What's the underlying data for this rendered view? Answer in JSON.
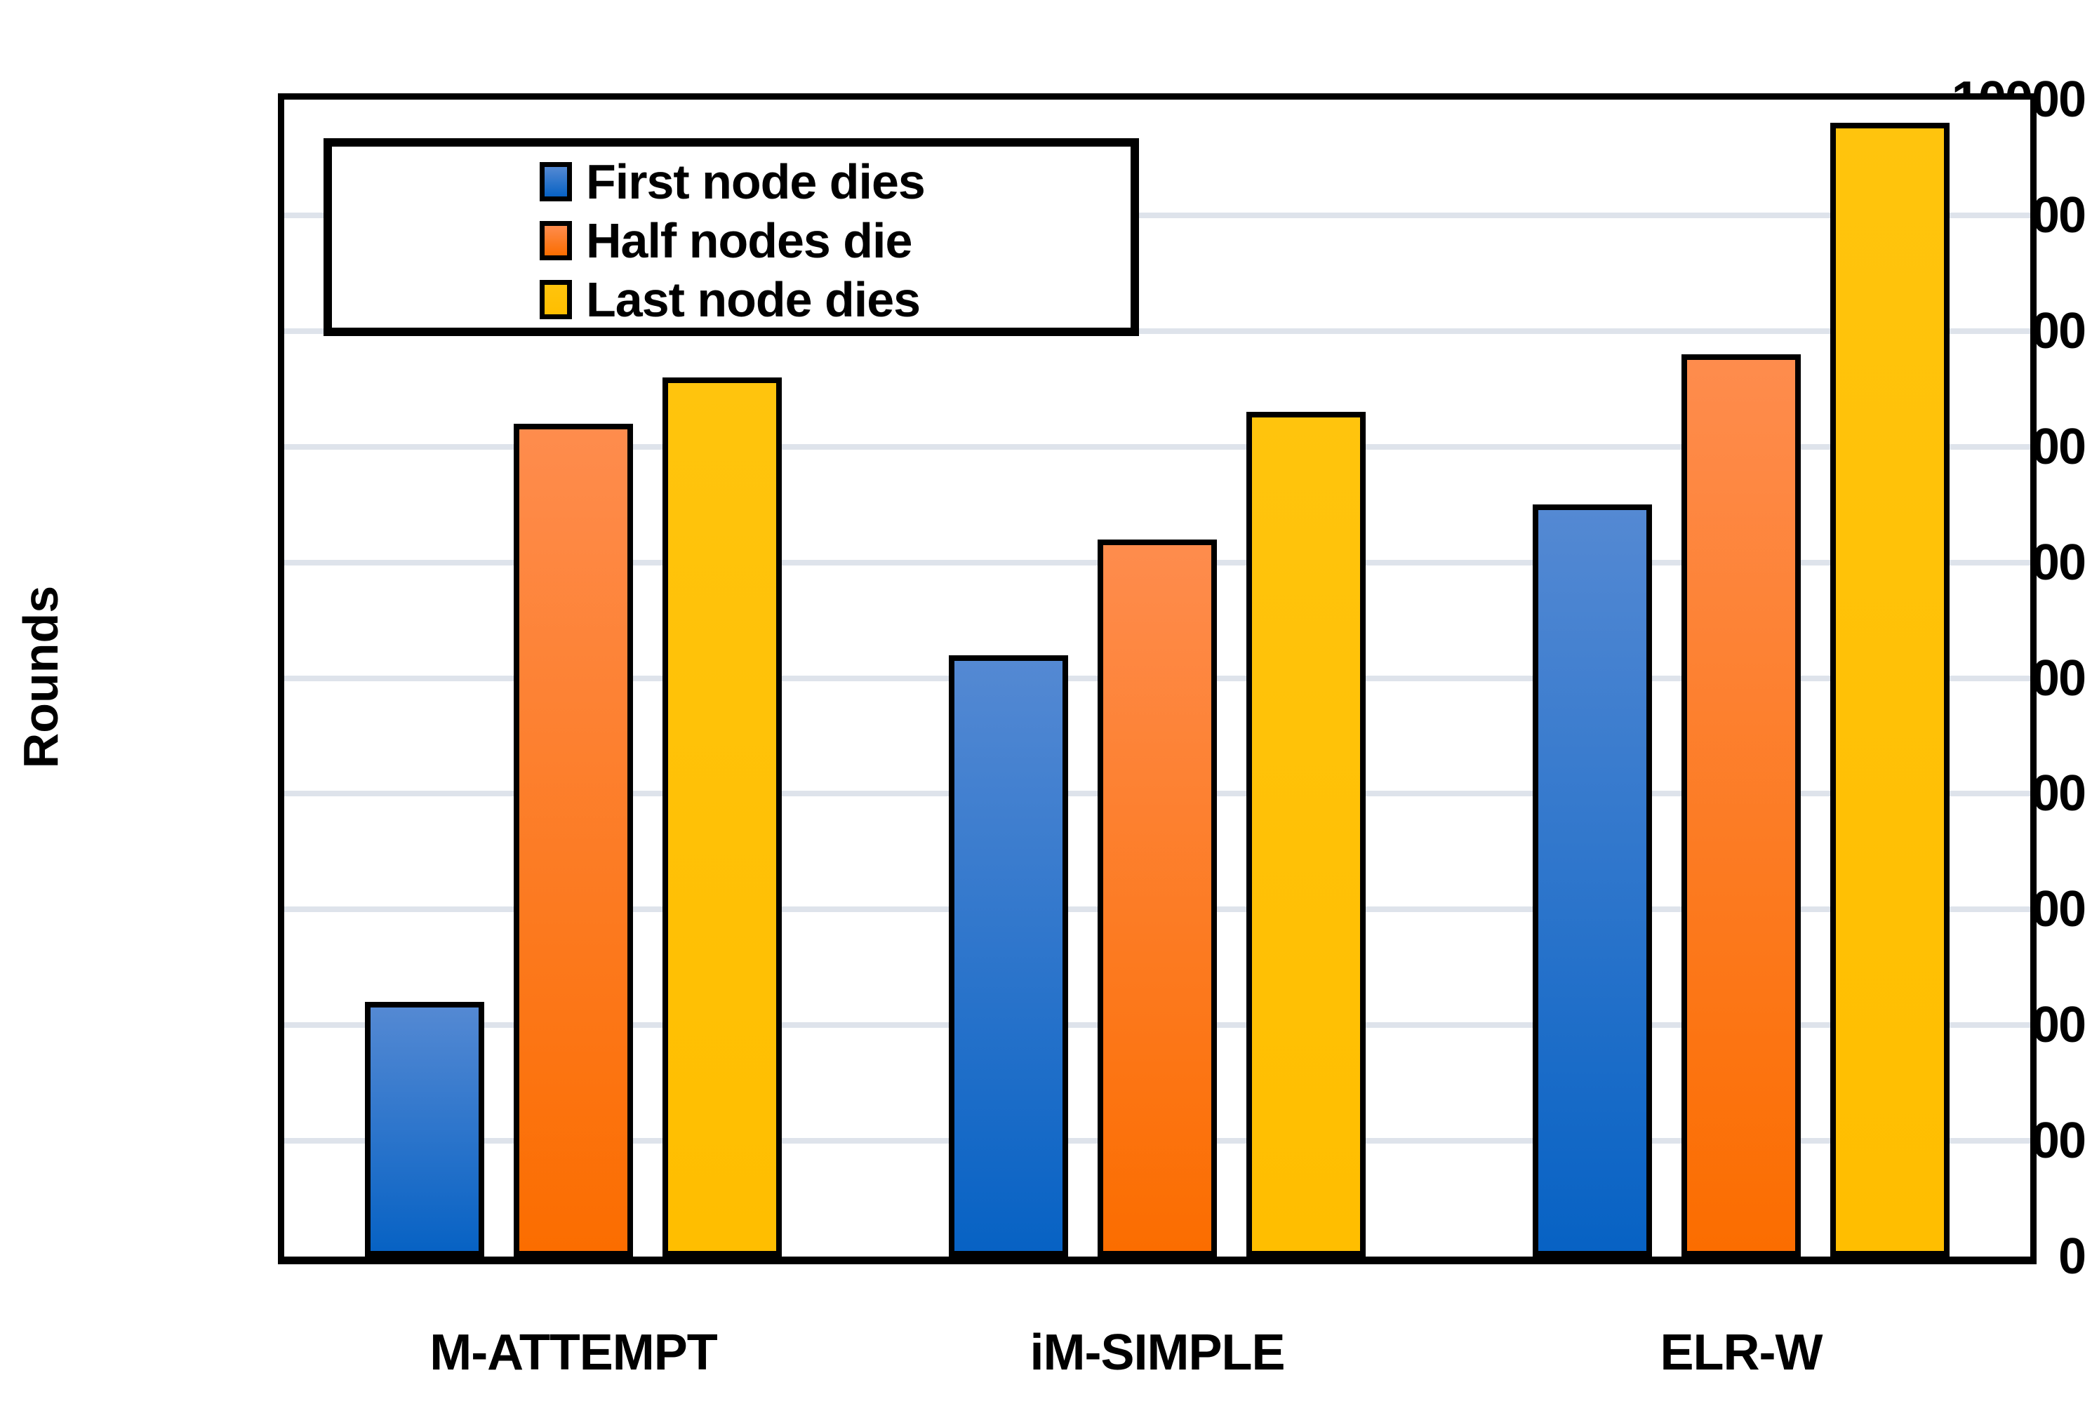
{
  "chart_data": {
    "type": "bar",
    "categories": [
      "M-ATTEMPT",
      "iM-SIMPLE",
      "ELR-W"
    ],
    "series": [
      {
        "name": "First node dies",
        "values": [
          2200,
          5200,
          6500
        ],
        "color_top": "#5489D3",
        "color_bottom": "#0762C4"
      },
      {
        "name": "Half nodes die",
        "values": [
          7200,
          6200,
          7800
        ],
        "color_top": "#FE8C4D",
        "color_bottom": "#FB6D00"
      },
      {
        "name": "Last node dies",
        "values": [
          7600,
          7300,
          9800
        ],
        "color_top": "#FFC40D",
        "color_bottom": "#FFBE00"
      }
    ],
    "title": "",
    "xlabel": "",
    "ylabel": "Rounds",
    "ylim": [
      0,
      10000
    ],
    "ytick_step": 1000,
    "grid": true,
    "gridline_color": "#DEE3EB",
    "legend_position": "top-left",
    "legend_entries": [
      "First node dies",
      "Half nodes die",
      "Last node dies"
    ]
  }
}
